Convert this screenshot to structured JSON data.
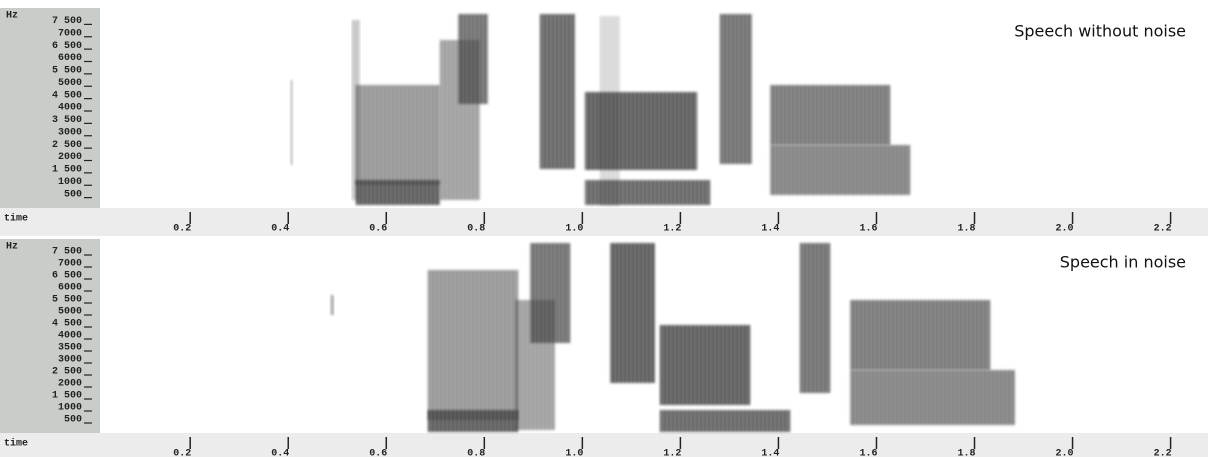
{
  "chart_data": [
    {
      "type": "spectrogram",
      "title": "Speech without noise",
      "ylabel": "Hz",
      "xlabel": "time",
      "xlim": [
        0.016,
        2.26
      ],
      "xticks": [
        0.2,
        0.4,
        0.6,
        0.8,
        {
          "value": 1,
          "label": "1.0"
        },
        1.2,
        1.4,
        1.6,
        1.8,
        {
          "value": 2,
          "label": "2.0"
        },
        2.2
      ],
      "ylim": [
        0,
        8000
      ],
      "yticks": [
        500,
        1000,
        {
          "value": 1500,
          "label": "1 500"
        },
        2000,
        {
          "value": 2500,
          "label": "2 500"
        },
        3000,
        {
          "value": 3500,
          "label": "3 500"
        },
        4000,
        {
          "value": 4500,
          "label": "4 500"
        },
        5000,
        {
          "value": 5500,
          "label": "5 500"
        },
        6000,
        {
          "value": 6500,
          "label": "6 500"
        },
        7000,
        {
          "value": 7500,
          "label": "7 500"
        }
      ]
    },
    {
      "type": "spectrogram",
      "title": "Speech in noise",
      "ylabel": "Hz",
      "xlabel": "time",
      "xlim": [
        0.016,
        2.26
      ],
      "xticks": [
        0.2,
        0.4,
        0.6,
        0.8,
        {
          "value": 1,
          "label": "1.0"
        },
        1.2,
        1.4,
        1.6,
        1.8,
        {
          "value": 2,
          "label": "2.0"
        },
        2.2
      ],
      "ylim": [
        0,
        8000
      ],
      "yticks": [
        500,
        1000,
        {
          "value": 1500,
          "label": "1 500"
        },
        2000,
        {
          "value": 2500,
          "label": "2 500"
        },
        3000,
        3500,
        4000,
        {
          "value": 4500,
          "label": "4 500"
        },
        5000,
        {
          "value": 5500,
          "label": "5 500"
        },
        6000,
        {
          "value": 6500,
          "label": "6 500"
        },
        7000,
        {
          "value": 7500,
          "label": "7 500"
        }
      ]
    }
  ]
}
